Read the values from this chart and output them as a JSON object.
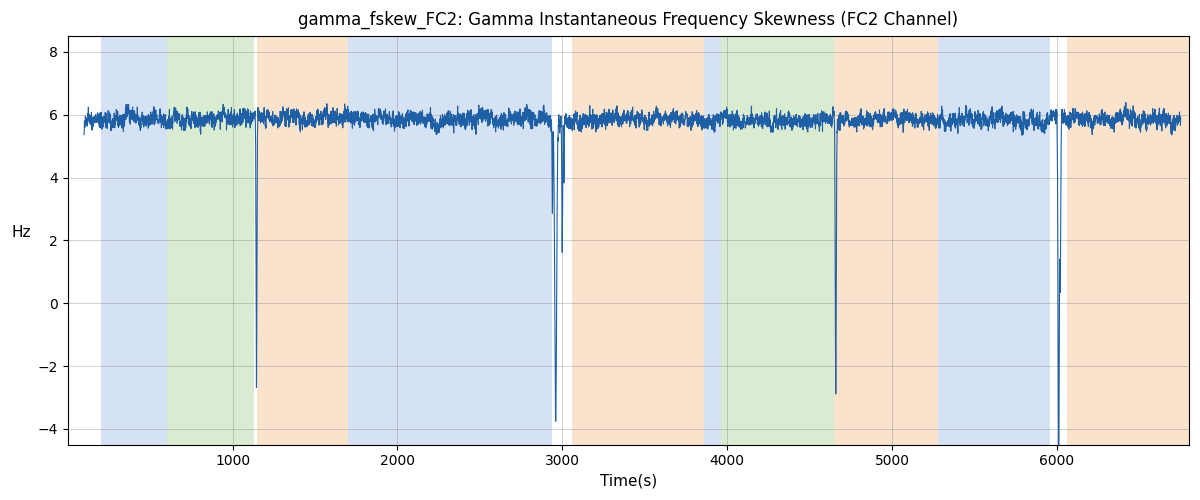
{
  "title": "gamma_fskew_FC2: Gamma Instantaneous Frequency Skewness (FC2 Channel)",
  "xlabel": "Time(s)",
  "ylabel": "Hz",
  "xlim": [
    0,
    6800
  ],
  "ylim": [
    -4.5,
    8.5
  ],
  "yticks": [
    -4,
    -2,
    0,
    2,
    4,
    6,
    8
  ],
  "xticks": [
    1000,
    2000,
    3000,
    4000,
    5000,
    6000
  ],
  "line_color": "#1f5fa6",
  "line_width": 0.8,
  "bg_bands": [
    {
      "xmin": 200,
      "xmax": 600,
      "color": "#adc6e8",
      "alpha": 0.5
    },
    {
      "xmin": 600,
      "xmax": 1130,
      "color": "#b5d9a5",
      "alpha": 0.5
    },
    {
      "xmin": 1150,
      "xmax": 1700,
      "color": "#f5c99a",
      "alpha": 0.5
    },
    {
      "xmin": 1700,
      "xmax": 2940,
      "color": "#adc6e8",
      "alpha": 0.5
    },
    {
      "xmin": 3060,
      "xmax": 3860,
      "color": "#f5c99a",
      "alpha": 0.5
    },
    {
      "xmin": 3860,
      "xmax": 3960,
      "color": "#adc6e8",
      "alpha": 0.5
    },
    {
      "xmin": 3960,
      "xmax": 4650,
      "color": "#b5d9a5",
      "alpha": 0.5
    },
    {
      "xmin": 4650,
      "xmax": 5280,
      "color": "#f5c99a",
      "alpha": 0.5
    },
    {
      "xmin": 5280,
      "xmax": 5960,
      "color": "#adc6e8",
      "alpha": 0.5
    },
    {
      "xmin": 6060,
      "xmax": 6800,
      "color": "#f5c99a",
      "alpha": 0.5
    }
  ],
  "seed": 42,
  "n_points": 6700,
  "t_start": 100,
  "t_end": 6750,
  "base_mean": 5.85,
  "base_amp": 0.35,
  "noise_std": 0.28
}
